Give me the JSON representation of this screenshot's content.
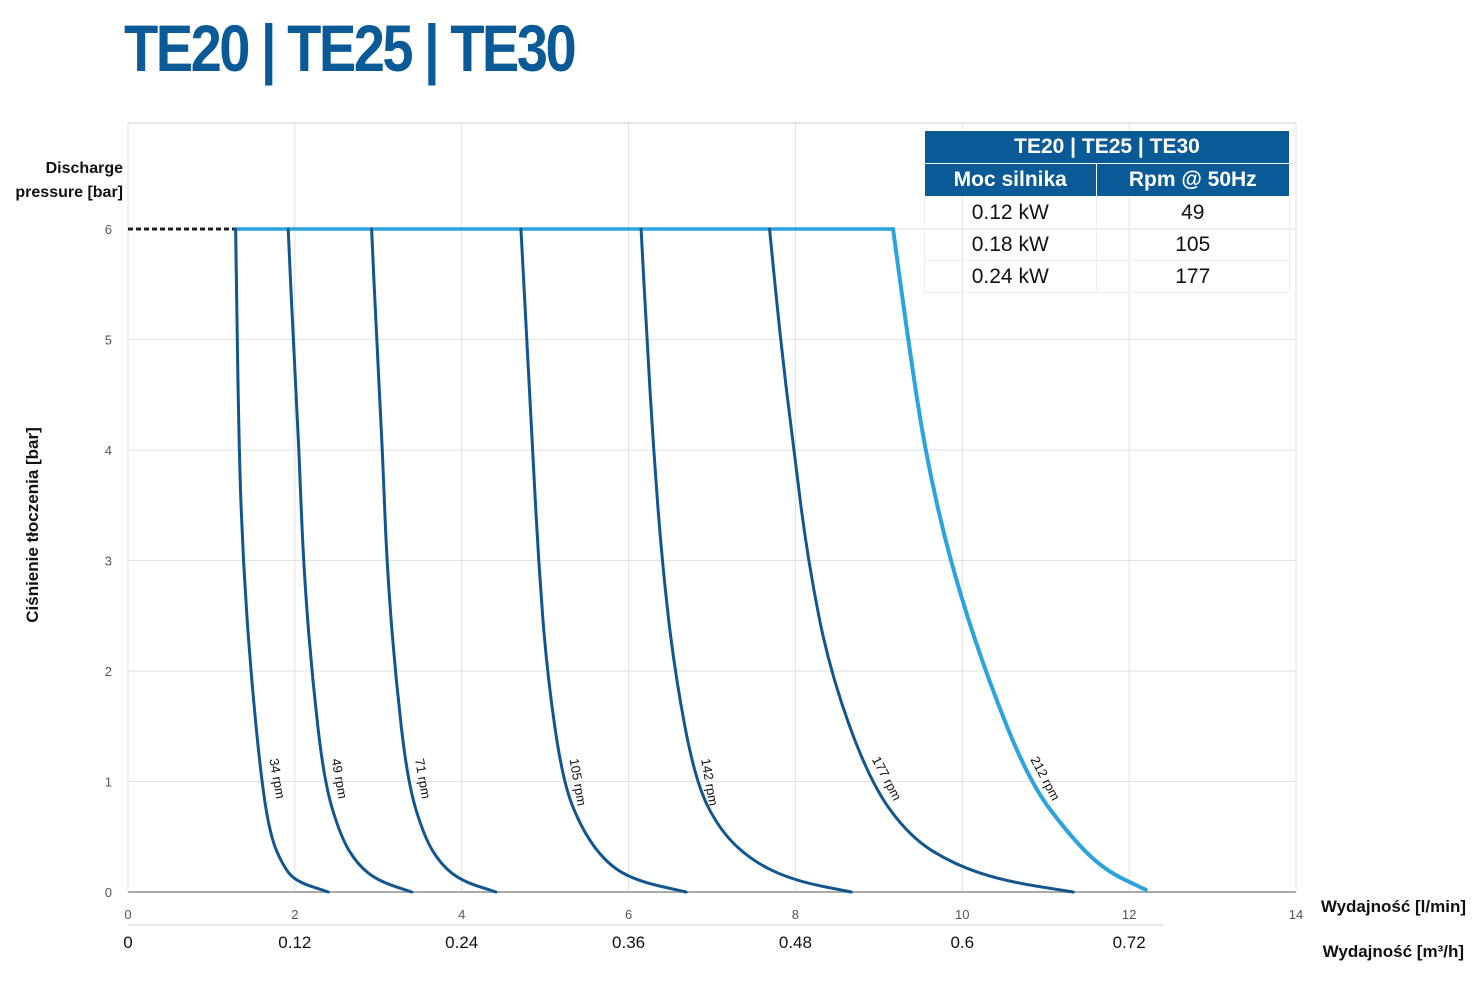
{
  "title": "TE20 | TE25 | TE30",
  "table": {
    "title": "TE20 | TE25 | TE30",
    "headers": [
      "Moc silnika",
      "Rpm @ 50Hz"
    ],
    "rows": [
      [
        "0.12 kW",
        "49"
      ],
      [
        "0.18 kW",
        "105"
      ],
      [
        "0.24 kW",
        "177"
      ]
    ]
  },
  "chart_data": {
    "type": "line",
    "ylabel_top": "Discharge pressure [bar]",
    "ylabel": "Ciśnienie tłoczenia [bar]",
    "xlabel": "Wydajność [l/min]",
    "xlabel2": "Wydajność [m³/h]",
    "xlim": [
      0,
      14
    ],
    "ylim": [
      0,
      6
    ],
    "xticks": [
      "0",
      "2",
      "4",
      "6",
      "8",
      "10",
      "12",
      "14"
    ],
    "xticks2": [
      "0",
      "0.12",
      "0.24",
      "0.36",
      "0.48",
      "0.6",
      "0.72"
    ],
    "yticks": [
      "0",
      "1",
      "2",
      "3",
      "4",
      "5",
      "6"
    ],
    "grid": true,
    "max_pressure_line": {
      "y": 6,
      "x": [
        1.29,
        9.17
      ],
      "color": "#2ba3dc"
    },
    "series": [
      {
        "name": "34 rpm",
        "color": "#12568f",
        "points": [
          [
            1.29,
            6
          ],
          [
            1.33,
            4
          ],
          [
            1.38,
            3
          ],
          [
            1.47,
            2
          ],
          [
            1.6,
            1
          ],
          [
            1.71,
            0.5
          ],
          [
            1.85,
            0.25
          ],
          [
            2.0,
            0.1
          ],
          [
            2.4,
            0
          ]
        ]
      },
      {
        "name": "49 rpm",
        "color": "#12568f",
        "points": [
          [
            1.92,
            6
          ],
          [
            1.98,
            5
          ],
          [
            2.05,
            4
          ],
          [
            2.1,
            3
          ],
          [
            2.2,
            2
          ],
          [
            2.35,
            1
          ],
          [
            2.55,
            0.5
          ],
          [
            2.75,
            0.25
          ],
          [
            3.0,
            0.1
          ],
          [
            3.4,
            0
          ]
        ]
      },
      {
        "name": "71 rpm",
        "color": "#12568f",
        "points": [
          [
            2.92,
            6
          ],
          [
            2.98,
            5
          ],
          [
            3.05,
            4
          ],
          [
            3.1,
            3
          ],
          [
            3.2,
            2
          ],
          [
            3.35,
            1
          ],
          [
            3.55,
            0.5
          ],
          [
            3.75,
            0.25
          ],
          [
            4.0,
            0.1
          ],
          [
            4.41,
            0
          ]
        ]
      },
      {
        "name": "105 rpm",
        "color": "#12568f",
        "points": [
          [
            4.71,
            6
          ],
          [
            4.78,
            5
          ],
          [
            4.85,
            4
          ],
          [
            4.92,
            3
          ],
          [
            5.02,
            2
          ],
          [
            5.21,
            1
          ],
          [
            5.45,
            0.55
          ],
          [
            5.75,
            0.25
          ],
          [
            6.1,
            0.1
          ],
          [
            6.69,
            0
          ]
        ]
      },
      {
        "name": "142 rpm",
        "color": "#12568f",
        "points": [
          [
            6.15,
            6
          ],
          [
            6.22,
            5
          ],
          [
            6.3,
            4
          ],
          [
            6.4,
            3
          ],
          [
            6.55,
            2
          ],
          [
            6.8,
            1
          ],
          [
            7.1,
            0.55
          ],
          [
            7.5,
            0.27
          ],
          [
            8.0,
            0.1
          ],
          [
            8.67,
            0
          ]
        ]
      },
      {
        "name": "177 rpm",
        "color": "#12568f",
        "points": [
          [
            7.69,
            6
          ],
          [
            7.82,
            5
          ],
          [
            7.98,
            4
          ],
          [
            8.15,
            3
          ],
          [
            8.41,
            2
          ],
          [
            8.89,
            1
          ],
          [
            9.37,
            0.5
          ],
          [
            9.9,
            0.25
          ],
          [
            10.5,
            0.1
          ],
          [
            11.33,
            0
          ]
        ]
      },
      {
        "name": "212 rpm",
        "color": "#2ba3dc",
        "points": [
          [
            9.17,
            6
          ],
          [
            9.35,
            5
          ],
          [
            9.55,
            4
          ],
          [
            9.85,
            3
          ],
          [
            10.27,
            2
          ],
          [
            10.8,
            1
          ],
          [
            11.3,
            0.5
          ],
          [
            11.7,
            0.2
          ],
          [
            12.2,
            0.02
          ]
        ]
      }
    ]
  }
}
